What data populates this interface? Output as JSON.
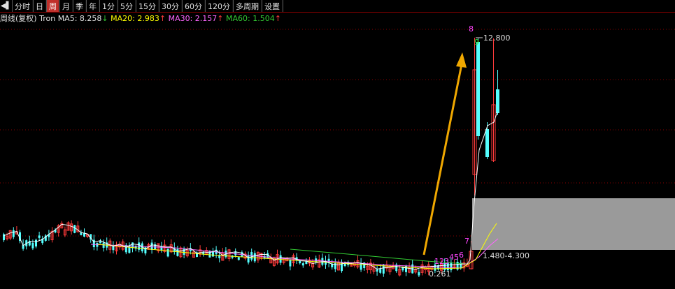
{
  "toolbar": {
    "back_icon": "back-arrow-icon",
    "tabs": [
      "分时",
      "日",
      "周",
      "月",
      "季",
      "年",
      "1分",
      "5分",
      "15分",
      "30分",
      "60分",
      "120分",
      "多周期",
      "设置"
    ],
    "active_tab": "周"
  },
  "indicator_bar": {
    "period_label": "周线(复权)",
    "symbol": "Tron",
    "ma5_label": "MA5:",
    "ma5_value": "8.258",
    "ma5_arrow": "↓",
    "ma20_label": "MA20:",
    "ma20_value": "2.983",
    "ma20_arrow": "↑",
    "ma30_label": "MA30:",
    "ma30_value": "2.157",
    "ma30_arrow": "↑",
    "ma60_label": "MA60:",
    "ma60_value": "1.504",
    "ma60_arrow": "↑",
    "colors": {
      "ma5": "#ffffff",
      "ma20": "#ffff00",
      "ma30": "#ff66ff",
      "ma60": "#33cc33"
    }
  },
  "chart_annotations": {
    "high_price": "12.800",
    "low_price": "0.261",
    "range_label": "1.480-4.300",
    "count_top_magenta": "8",
    "count_top_green": "9",
    "count_seq_a": "123",
    "count_seq_b": "45",
    "count_seq_c": "6",
    "count_seq_d": "7"
  },
  "colors": {
    "up": "#ff3b3b",
    "down": "#54ffff",
    "grid": "#8a0000",
    "arrow": "#f0a800",
    "zone": "#9a9a9a"
  },
  "chart_data": {
    "type": "candlestick",
    "period": "weekly",
    "high": 12.8,
    "low": 0.261,
    "support_zone": [
      1.48,
      4.3
    ]
  }
}
